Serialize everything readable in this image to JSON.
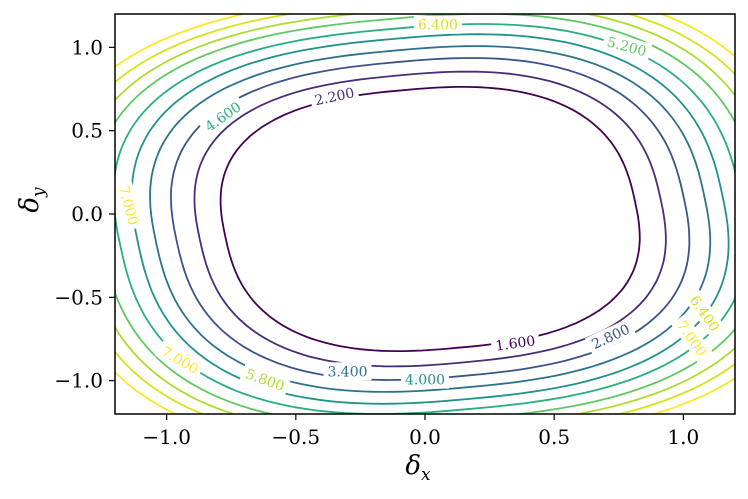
{
  "chart_data": {
    "type": "contour",
    "xlabel": "δx",
    "ylabel": "δy",
    "xlim": [
      -1.2,
      1.2
    ],
    "ylim": [
      -1.2,
      1.2
    ],
    "xticks": [
      -1.0,
      -0.5,
      0.0,
      0.5,
      1.0
    ],
    "xtick_labels": [
      "−1.0",
      "−0.5",
      "0.0",
      "0.5",
      "1.0"
    ],
    "yticks": [
      -1.0,
      -0.5,
      0.0,
      0.5,
      1.0
    ],
    "ytick_labels": [
      "−1.0",
      "−0.5",
      "0.0",
      "0.5",
      "1.0"
    ],
    "grid": false,
    "colormap": "viridis",
    "levels": [
      {
        "value": 1.6,
        "label": "1.600",
        "color": "#440154",
        "center_x": 0.02,
        "center_y": -0.03,
        "a": 0.8,
        "b": 0.78,
        "tilt": 8
      },
      {
        "value": 2.2,
        "label": "2.200",
        "color": "#472d7b",
        "center_x": 0.02,
        "center_y": -0.03,
        "a": 0.9,
        "b": 0.87,
        "tilt": 8
      },
      {
        "value": 2.8,
        "label": "2.800",
        "color": "#3b528b",
        "center_x": 0.02,
        "center_y": -0.03,
        "a": 0.99,
        "b": 0.95,
        "tilt": 8
      },
      {
        "value": 3.4,
        "label": "3.400",
        "color": "#2c728e",
        "center_x": 0.02,
        "center_y": -0.03,
        "a": 1.07,
        "b": 1.02,
        "tilt": 8
      },
      {
        "value": 4.0,
        "label": "4.000",
        "color": "#21918c",
        "center_x": 0.02,
        "center_y": -0.03,
        "a": 1.14,
        "b": 1.09,
        "tilt": 8
      },
      {
        "value": 4.6,
        "label": "4.600",
        "color": "#28ae80",
        "center_x": 0.02,
        "center_y": -0.03,
        "a": 1.21,
        "b": 1.15,
        "tilt": 8
      },
      {
        "value": 5.2,
        "label": "5.200",
        "color": "#5ec962",
        "center_x": 0.02,
        "center_y": -0.03,
        "a": 1.28,
        "b": 1.21,
        "tilt": 8
      },
      {
        "value": 5.8,
        "label": "5.800",
        "color": "#addc30",
        "center_x": 0.02,
        "center_y": -0.03,
        "a": 1.34,
        "b": 1.26,
        "tilt": 8
      },
      {
        "value": 6.4,
        "label": "6.400",
        "color": "#d8e219",
        "center_x": 0.02,
        "center_y": -0.03,
        "a": 1.4,
        "b": 1.31,
        "tilt": 8
      },
      {
        "value": 7.0,
        "label": "7.000",
        "color": "#fde725",
        "center_x": 0.02,
        "center_y": -0.03,
        "a": 1.46,
        "b": 1.36,
        "tilt": 8
      }
    ],
    "level_labels": [
      {
        "text": "1.600",
        "x": 0.35,
        "y": -0.78,
        "rotation": 8,
        "color": "#440154"
      },
      {
        "text": "2.200",
        "x": -0.35,
        "y": 0.7,
        "rotation": 12,
        "color": "#472d7b"
      },
      {
        "text": "2.800",
        "x": 0.72,
        "y": -0.74,
        "rotation": 25,
        "color": "#3b528b"
      },
      {
        "text": "3.400",
        "x": -0.3,
        "y": -0.95,
        "rotation": 0,
        "color": "#2c728e"
      },
      {
        "text": "4.000",
        "x": 0.0,
        "y": -1.0,
        "rotation": 0,
        "color": "#21918c"
      },
      {
        "text": "4.600",
        "x": -0.78,
        "y": 0.58,
        "rotation": 35,
        "color": "#28ae80"
      },
      {
        "text": "5.200",
        "x": 0.78,
        "y": 1.0,
        "rotation": -15,
        "color": "#5ec962"
      },
      {
        "text": "5.800",
        "x": -0.62,
        "y": -1.0,
        "rotation": -20,
        "color": "#addc30"
      },
      {
        "text": "6.400",
        "x": 0.05,
        "y": 1.13,
        "rotation": 0,
        "color": "#d8e219"
      },
      {
        "text": "7.000",
        "x": -0.95,
        "y": -0.88,
        "rotation": -30,
        "color": "#fde725"
      },
      {
        "text": "6.400",
        "x": 1.08,
        "y": -0.6,
        "rotation": -55,
        "color": "#d8e219"
      },
      {
        "text": "7.000",
        "x": 1.03,
        "y": -0.75,
        "rotation": -55,
        "color": "#fde725"
      },
      {
        "text": "7.000",
        "x": -1.15,
        "y": 0.05,
        "rotation": -75,
        "color": "#fde725"
      }
    ]
  }
}
